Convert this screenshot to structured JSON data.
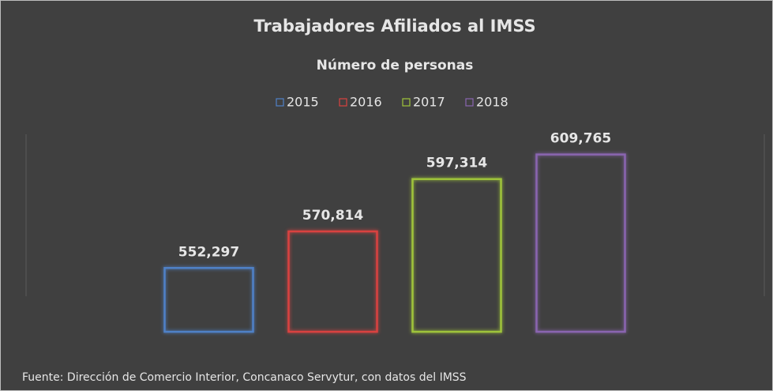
{
  "chart_data": {
    "type": "bar",
    "title": "Trabajadores Afiliados al IMSS",
    "subtitle": "Número de personas",
    "categories": [
      "2015",
      "2016",
      "2017",
      "2018"
    ],
    "series": [
      {
        "name": "2015",
        "color": "#4f81c7",
        "values": [
          552297,
          null,
          null,
          null
        ],
        "value_labels": [
          "552,297",
          null,
          null,
          null
        ]
      },
      {
        "name": "2016",
        "color": "#d9423f",
        "values": [
          null,
          570814,
          null,
          null
        ],
        "value_labels": [
          null,
          "570,814",
          null,
          null
        ]
      },
      {
        "name": "2017",
        "color": "#9fc43a",
        "values": [
          null,
          null,
          597314,
          null
        ],
        "value_labels": [
          null,
          null,
          "597,314",
          null
        ]
      },
      {
        "name": "2018",
        "color": "#8a65b0",
        "values": [
          null,
          null,
          null,
          609765
        ],
        "value_labels": [
          null,
          null,
          null,
          "609,765"
        ]
      }
    ],
    "ylim": [
      520000,
      620000
    ],
    "source": "Fuente: Dirección de Comercio Interior, Concanaco Servytur, con datos del IMSS"
  }
}
